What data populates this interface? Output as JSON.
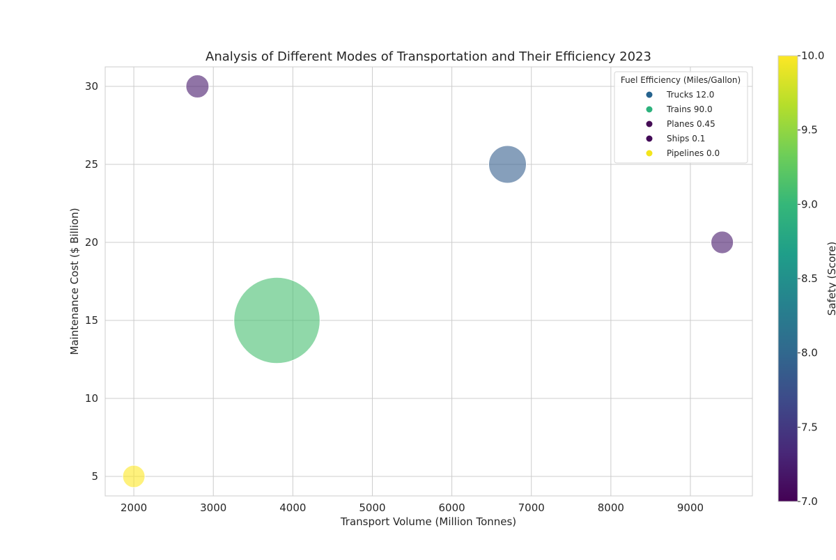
{
  "chart_data": {
    "type": "scatter",
    "title": "Analysis of Different Modes of Transportation and Their Efficiency 2023",
    "xlabel": "Transport Volume (Million Tonnes)",
    "ylabel": "Maintenance Cost ($ Billion)",
    "xlim": [
      1640,
      9780
    ],
    "ylim": [
      3.75,
      31.25
    ],
    "xticks": [
      2000,
      3000,
      4000,
      5000,
      6000,
      7000,
      8000,
      9000
    ],
    "yticks": [
      5,
      10,
      15,
      20,
      25,
      30
    ],
    "grid": true,
    "points": [
      {
        "name": "Trucks",
        "x": 6700,
        "y": 25,
        "fuel_efficiency": 12.0,
        "safety": 7.9
      },
      {
        "name": "Trains",
        "x": 3800,
        "y": 15,
        "fuel_efficiency": 90.0,
        "safety": 9.1
      },
      {
        "name": "Planes",
        "x": 2800,
        "y": 30,
        "fuel_efficiency": 0.45,
        "safety": 7.2
      },
      {
        "name": "Ships",
        "x": 9400,
        "y": 20,
        "fuel_efficiency": 0.1,
        "safety": 7.2
      },
      {
        "name": "Pipelines",
        "x": 2000,
        "y": 5,
        "fuel_efficiency": 0.0,
        "safety": 10.0
      }
    ],
    "size_encoding": "fuel_efficiency",
    "color_encoding": "safety",
    "bubble_alpha": 0.6,
    "legend": {
      "title": "Fuel Efficiency (Miles/Gallon)",
      "placement": "top-right",
      "entries": [
        {
          "label": "Trucks 12.0",
          "color": "#26638e"
        },
        {
          "label": "Trains 90.0",
          "color": "#2db27d"
        },
        {
          "label": "Planes 0.45",
          "color": "#450d55"
        },
        {
          "label": "Ships 0.1",
          "color": "#420a57"
        },
        {
          "label": "Pipelines 0.0",
          "color": "#f3e51c"
        }
      ]
    },
    "colorbar": {
      "label": "Safety (Score)",
      "min": 7.0,
      "max": 10.0,
      "ticks": [
        "7.0",
        "7.5",
        "8.0",
        "8.5",
        "9.0",
        "9.5",
        "10.0"
      ],
      "colormap": "viridis",
      "colormap_stops": [
        "#440154",
        "#482878",
        "#3e4989",
        "#31688e",
        "#26828e",
        "#1f9e89",
        "#35b779",
        "#6ece58",
        "#b5de2b",
        "#fde725"
      ]
    }
  }
}
